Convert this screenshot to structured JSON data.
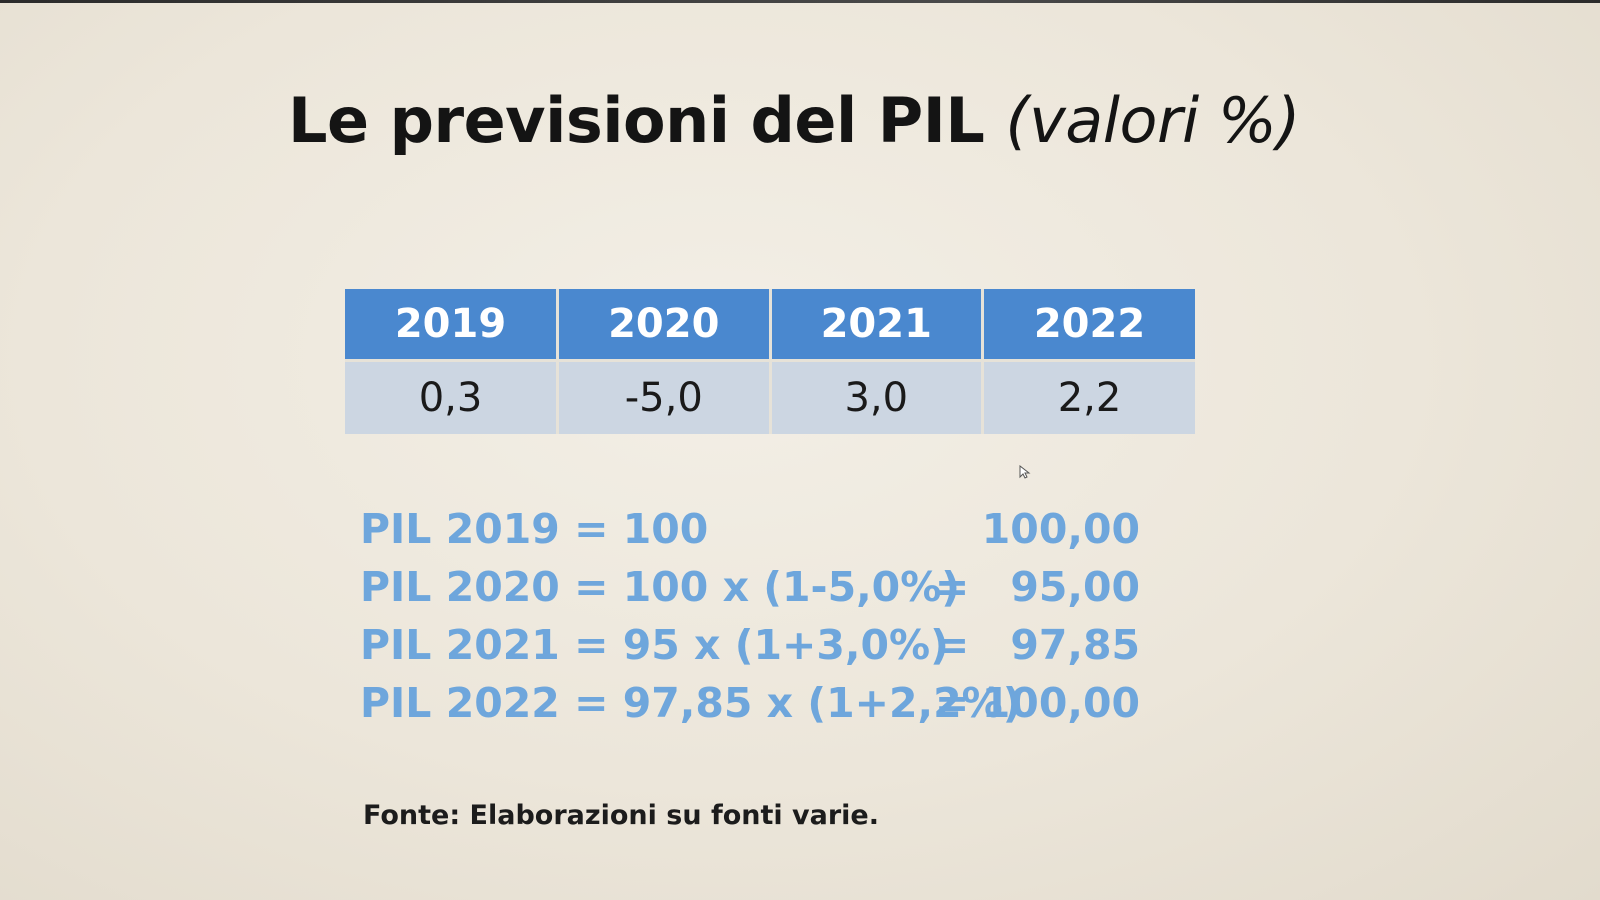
{
  "title": {
    "main": "Le previsioni del PIL",
    "subtitle": "(valori %)"
  },
  "table": {
    "headers": [
      "2019",
      "2020",
      "2021",
      "2022"
    ],
    "values": [
      "0,3",
      "-5,0",
      "3,0",
      "2,2"
    ]
  },
  "calculations": [
    {
      "expression": "PIL 2019 = 100",
      "equals": "",
      "result": "100,00"
    },
    {
      "expression": "PIL 2020 = 100 x (1-5,0%)",
      "equals": "=",
      "result": "95,00"
    },
    {
      "expression": "PIL 2021 = 95 x (1+3,0%)",
      "equals": "=",
      "result": "97,85"
    },
    {
      "expression": "PIL 2022 = 97,85 x (1+2,2%)",
      "equals": "=",
      "result": "100,00"
    }
  ],
  "source": "Fonte: Elaborazioni su fonti varie.",
  "colors": {
    "header_bg": "#4a88cf",
    "row_bg": "#ccd6e2",
    "calc_text": "#6ea6dc"
  },
  "icons": {
    "cursor": "cursor-arrow-icon"
  }
}
